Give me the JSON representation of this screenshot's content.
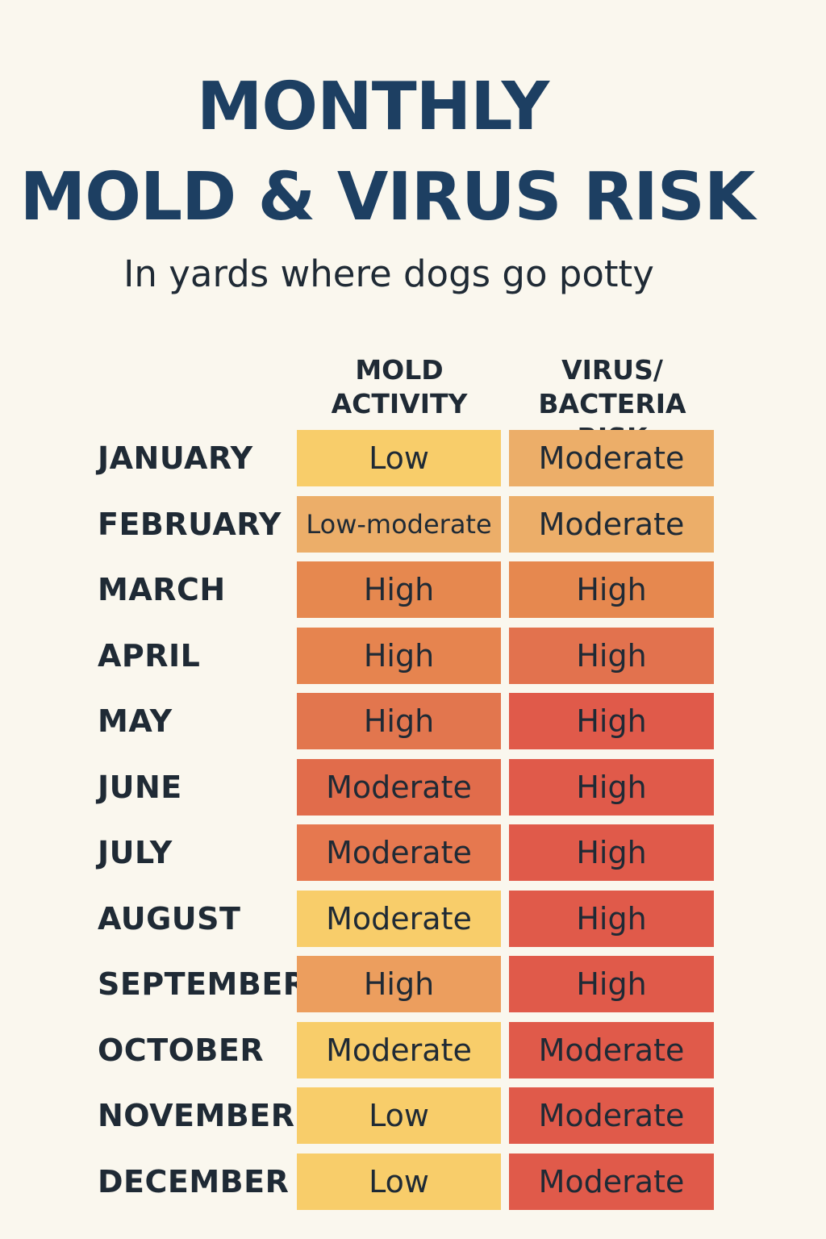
{
  "header": {
    "title_line1": "MONTHLY",
    "title_line2": "MOLD & VIRUS RISK",
    "subtitle": "In yards where dogs go potty"
  },
  "colors": {
    "low": "#f8cd6a",
    "low_moderate": "#ecae69",
    "moderate_warm": "#e87b4e",
    "high_orange": "#e6884f",
    "high_red": "#e05a4a",
    "text": "#1f2a35",
    "title": "#1d3f62",
    "background": "#faf7ee"
  },
  "chart_data": {
    "type": "table",
    "columns": [
      "MOLD\nACTIVITY",
      "VIRUS/\nBACTERIA RISK"
    ],
    "rows": [
      {
        "month": "JANUARY",
        "mold": "Low",
        "virus": "Moderate",
        "mold_color": "#f8cd6a",
        "virus_color": "#ecae69"
      },
      {
        "month": "FEBRUARY",
        "mold": "Low-moderate",
        "virus": "Moderate",
        "mold_color": "#ecae69",
        "virus_color": "#ecae69"
      },
      {
        "month": "MARCH",
        "mold": "High",
        "virus": "High",
        "mold_color": "#e6884f",
        "virus_color": "#e6884f"
      },
      {
        "month": "APRIL",
        "mold": "High",
        "virus": "High",
        "mold_color": "#e6844f",
        "virus_color": "#e2724e"
      },
      {
        "month": "MAY",
        "mold": "High",
        "virus": "High",
        "mold_color": "#e2764e",
        "virus_color": "#e05a4a"
      },
      {
        "month": "JUNE",
        "mold": "Moderate",
        "virus": "High",
        "mold_color": "#e16c4b",
        "virus_color": "#e05a4a"
      },
      {
        "month": "JULY",
        "mold": "Moderate",
        "virus": "High",
        "mold_color": "#e6784f",
        "virus_color": "#e05a4a"
      },
      {
        "month": "AUGUST",
        "mold": "Moderate",
        "virus": "High",
        "mold_color": "#f8cd6a",
        "virus_color": "#e05a4a"
      },
      {
        "month": "SEPTEMBER",
        "mold": "High",
        "virus": "High",
        "mold_color": "#ec9e5e",
        "virus_color": "#e05a4a"
      },
      {
        "month": "OCTOBER",
        "mold": "Moderate",
        "virus": "Moderate",
        "mold_color": "#f8cd6a",
        "virus_color": "#e05a4a"
      },
      {
        "month": "NOVEMBER",
        "mold": "Low",
        "virus": "Moderate",
        "mold_color": "#f8cd6a",
        "virus_color": "#e05a4a"
      },
      {
        "month": "DECEMBER",
        "mold": "Low",
        "virus": "Moderate",
        "mold_color": "#f8cd6a",
        "virus_color": "#e05a4a"
      }
    ]
  }
}
